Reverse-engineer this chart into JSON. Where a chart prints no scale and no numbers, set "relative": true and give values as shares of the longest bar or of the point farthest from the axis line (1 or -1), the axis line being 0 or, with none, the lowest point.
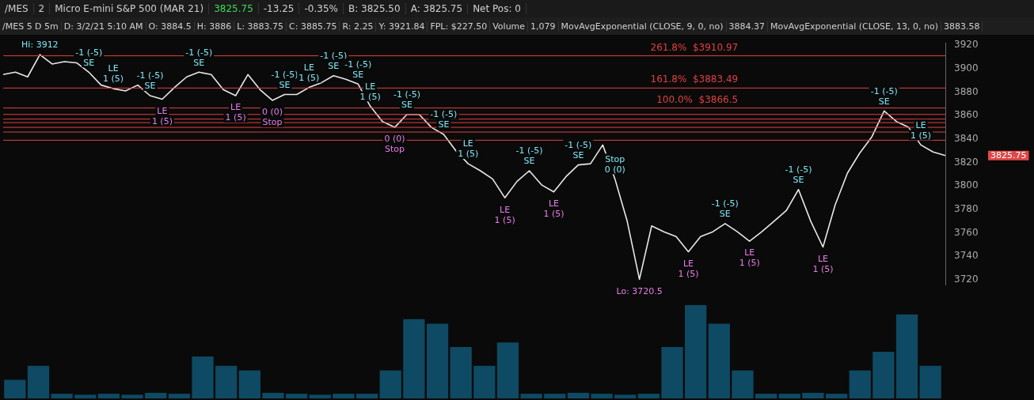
{
  "chart_data": [
    {
      "type": "line",
      "categories": [
        null,
        null,
        null,
        null,
        null,
        null,
        null,
        null,
        null,
        null,
        null,
        null,
        null,
        null,
        null,
        null,
        null,
        null,
        null,
        null,
        null,
        null,
        null,
        null,
        null,
        null,
        null,
        null,
        null,
        null,
        null,
        null,
        null,
        null,
        null,
        null,
        null,
        null,
        null,
        null,
        null,
        null,
        null,
        null,
        null,
        null,
        null,
        null,
        null,
        null,
        null,
        null,
        null,
        null,
        null,
        null,
        null,
        null,
        null,
        null,
        null,
        null,
        null,
        null,
        null,
        null,
        null,
        null,
        null,
        null,
        null,
        null,
        null,
        null,
        null,
        null,
        null,
        null
      ],
      "series": [
        {
          "color": "#e8e8e8",
          "values": [
            3895,
            3897,
            3893,
            3912,
            3904,
            3906,
            3905,
            3897,
            3886,
            3883,
            3881,
            3886,
            3877,
            3874,
            3884,
            3893,
            3897,
            3895,
            3882,
            3877,
            3895,
            3882,
            3873,
            3878,
            3878,
            3884,
            3888,
            3894,
            3891,
            3887,
            3868,
            3855,
            3850,
            3861,
            3861,
            3850,
            3844,
            3830,
            3819,
            3813,
            3806,
            3790,
            3804,
            3813,
            3801,
            3795,
            3808,
            3818,
            3819,
            3835,
            3806,
            3770,
            3720.5,
            3766,
            3761,
            3757,
            3744,
            3757,
            3761,
            3768,
            3761,
            3753,
            3761,
            3770,
            3779,
            3797,
            3770,
            3748,
            3784,
            3811,
            3828,
            3842,
            3864,
            3855,
            3850,
            3835,
            3829,
            3826
          ]
        }
      ],
      "ylim": [
        3716,
        3922
      ],
      "yticks": [
        3720,
        3740,
        3760,
        3780,
        3800,
        3820,
        3840,
        3860,
        3880,
        3900,
        3920
      ],
      "tick_labels": "y",
      "marker": "none",
      "ref_lines": [
        {
          "axis": "y",
          "value": 3910.97,
          "label": "261.8%  $3910.97",
          "color": "#e04040"
        },
        {
          "axis": "y",
          "value": 3883.49,
          "label": "161.8%  $3883.49",
          "color": "#e04040"
        },
        {
          "axis": "y",
          "value": 3866.5,
          "label": "100.0%  $3866.5",
          "color": "#e04040"
        },
        {
          "axis": "y",
          "value": 3861,
          "color": "#e04040"
        },
        {
          "axis": "y",
          "value": 3857,
          "color": "#e04040"
        },
        {
          "axis": "y",
          "value": 3854,
          "color": "#e04040"
        },
        {
          "axis": "y",
          "value": 3850,
          "color": "#e04040"
        },
        {
          "axis": "y",
          "value": 3846,
          "color": "#e04040"
        },
        {
          "axis": "y",
          "value": 3839,
          "color": "#e04040"
        }
      ],
      "annotations": [
        "/MES",
        "2",
        "Micro E-mini S&P 500 (MAR 21)",
        "3825.75",
        "-13.25",
        "-0.35%",
        "B: 3825.50",
        "A: 3825.75",
        "Net Pos: 0",
        "/MES 5 D 5m",
        "D: 3/2/21 5:10 AM",
        "O: 3884.5",
        "H: 3886",
        "L: 3883.75",
        "C: 3885.75",
        "R: 2.25",
        "Y: 3921.84",
        "FPL: $227.50",
        "Volume",
        "1,079",
        "MovAvgExponential (CLOSE, 9, 0, no)",
        "3884.37",
        "MovAvgExponential (CLOSE, 13, 0, no)",
        "3883.58",
        "3825.75",
        {
          "text": "Hi: 3912",
          "y": 3912
        },
        {
          "text": "-1 (-5)\nSE",
          "y": 3897
        },
        {
          "text": "LE\n1 (5)",
          "y": 3883
        },
        {
          "text": "-1 (-5)\nSE",
          "y": 3877
        },
        {
          "text": "LE\n1 (5)",
          "y": 3874
        },
        {
          "text": "-1 (-5)\nSE",
          "y": 3897
        },
        {
          "text": "LE\n1 (5)",
          "y": 3877
        },
        {
          "text": "0 (0)\nStop",
          "y": 3873
        },
        {
          "text": "-1 (-5)\nSE",
          "y": 3878
        },
        {
          "text": "LE\n1 (5)",
          "y": 3884
        },
        {
          "text": "-1 (-5)\nSE",
          "y": 3894
        },
        {
          "text": "-1 (-5)\nSE",
          "y": 3887
        },
        {
          "text": "LE\n1 (5)",
          "y": 3868
        },
        {
          "text": "0 (0)\nStop",
          "y": 3850
        },
        {
          "text": "-1 (-5)\nSE",
          "y": 3861
        },
        {
          "text": "-1 (-5)\nSE",
          "y": 3844
        },
        {
          "text": "LE\n1 (5)",
          "y": 3819
        },
        {
          "text": "LE\n1 (5)",
          "y": 3790
        },
        {
          "text": "-1 (-5)\nSE",
          "y": 3813
        },
        {
          "text": "LE\n1 (5)",
          "y": 3795
        },
        {
          "text": "-1 (-5)\nSE",
          "y": 3818
        },
        {
          "text": "Stop\n0 (0)",
          "y": 3806
        },
        {
          "text": "Lo: 3720.5",
          "y": 3720.5
        },
        {
          "text": "LE\n1 (5)",
          "y": 3744
        },
        {
          "text": "-1 (-5)\nSE",
          "y": 3768
        },
        {
          "text": "LE\n1 (5)",
          "y": 3753
        },
        {
          "text": "-1 (-5)\nSE",
          "y": 3797
        },
        {
          "text": "LE\n1 (5)",
          "y": 3748
        },
        {
          "text": "-1 (-5)\nSE",
          "y": 3864
        },
        {
          "text": "LE\n1 (5)",
          "y": 3835
        }
      ]
    },
    {
      "type": "bar",
      "relative": true,
      "tick_labels": false,
      "color": "#0e4a63",
      "categories": [
        null,
        null,
        null,
        null,
        null,
        null,
        null,
        null,
        null,
        null,
        null,
        null,
        null,
        null,
        null,
        null,
        null,
        null,
        null,
        null,
        null,
        null,
        null,
        null,
        null,
        null,
        null,
        null,
        null,
        null,
        null,
        null,
        null,
        null,
        null,
        null,
        null,
        null,
        null,
        null
      ],
      "values": [
        0.2,
        0.35,
        0.05,
        0.04,
        0.05,
        0.04,
        0.06,
        0.05,
        0.45,
        0.35,
        0.3,
        0.06,
        0.05,
        0.04,
        0.05,
        0.05,
        0.3,
        0.85,
        0.8,
        0.55,
        0.35,
        0.6,
        0.05,
        0.05,
        0.06,
        0.05,
        0.04,
        0.05,
        0.55,
        1,
        0.8,
        0.3,
        0.05,
        0.05,
        0.06,
        0.05,
        0.3,
        0.5,
        0.9,
        0.35
      ]
    }
  ]
}
